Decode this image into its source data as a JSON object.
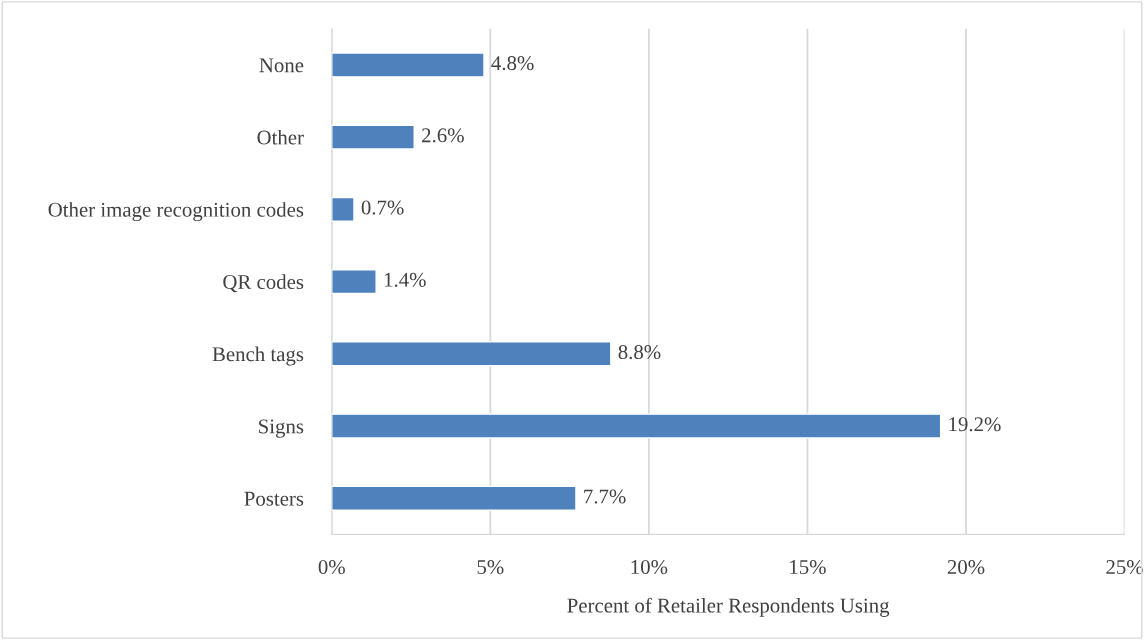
{
  "chart_data": {
    "type": "bar",
    "orientation": "horizontal",
    "xlabel": "Percent of Retailer Respondents Using",
    "categories": [
      "None",
      "Other",
      "Other image recognition codes",
      "QR codes",
      "Bench tags",
      "Signs",
      "Posters"
    ],
    "values": [
      4.8,
      2.6,
      0.7,
      1.4,
      8.8,
      19.2,
      7.7
    ],
    "color": "#4f81bd",
    "value_labels": [
      "4.8%",
      "2.6%",
      "0.7%",
      "1.4%",
      "8.8%",
      "19.2%",
      "7.7%"
    ],
    "xlim": [
      0,
      25
    ],
    "xticks": [
      {
        "value": 0,
        "label": "0%"
      },
      {
        "value": 5,
        "label": "5%"
      },
      {
        "value": 10,
        "label": "10%"
      },
      {
        "value": 15,
        "label": "15%"
      },
      {
        "value": 20,
        "label": "20%"
      },
      {
        "value": 25,
        "label": "25%"
      }
    ],
    "grid": "x",
    "legend": false
  }
}
